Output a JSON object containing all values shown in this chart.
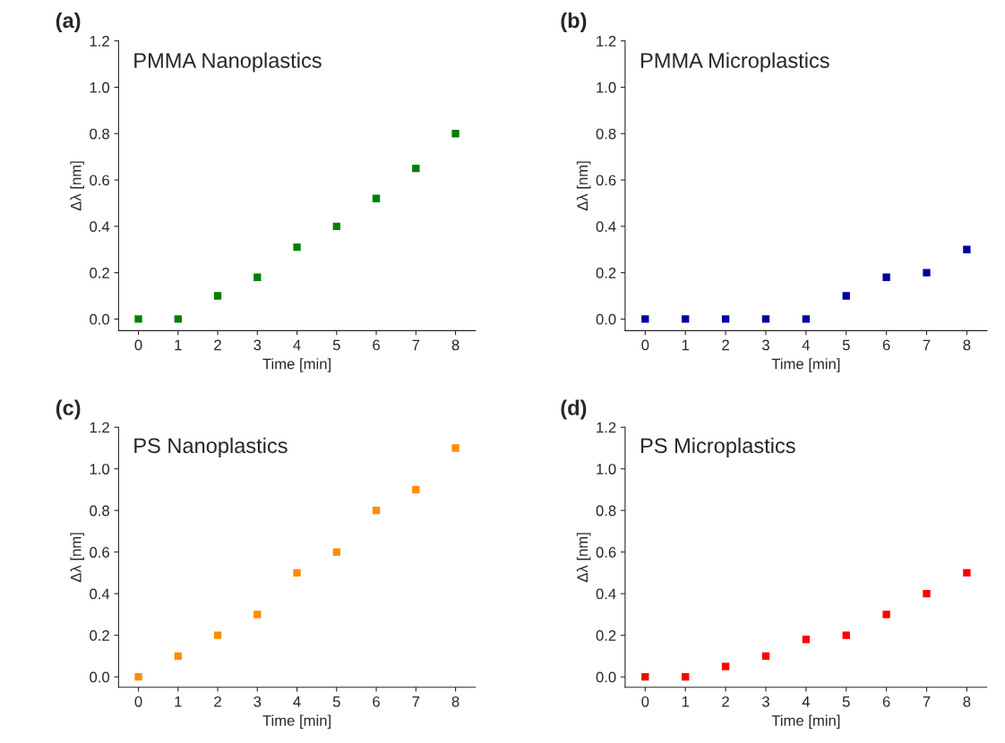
{
  "chart_data": [
    {
      "type": "scatter",
      "title": "PMMA Nanoplastics",
      "xlabel": "Time [min]",
      "ylabel": "Δλ [nm]",
      "annotations": [
        "(a)"
      ],
      "x": [
        0,
        1,
        2,
        3,
        4,
        5,
        6,
        7,
        8
      ],
      "marker": "square",
      "grid": false,
      "series": [
        {
          "color": "#008000",
          "values": [
            0,
            0,
            0.1,
            0.18,
            0.31,
            0.4,
            0.52,
            0.65,
            0.8
          ]
        }
      ],
      "xlim": [
        -0.5,
        8.5
      ],
      "xticks": [
        0,
        1,
        2,
        3,
        4,
        5,
        6,
        7,
        8
      ],
      "ylim": [
        -0.05,
        1.2
      ],
      "yticks": [
        {
          "value": 0,
          "label": "0.0"
        },
        {
          "value": 0.2,
          "label": "0.2"
        },
        {
          "value": 0.4,
          "label": "0.4"
        },
        {
          "value": 0.6,
          "label": "0.6"
        },
        {
          "value": 0.8,
          "label": "0.8"
        },
        {
          "value": 1.0,
          "label": "1.0"
        },
        {
          "value": 1.2,
          "label": "1.2"
        }
      ]
    },
    {
      "type": "scatter",
      "title": "PMMA Microplastics",
      "xlabel": "Time [min]",
      "ylabel": "Δλ [nm]",
      "annotations": [
        "(b)"
      ],
      "x": [
        0,
        1,
        2,
        3,
        4,
        5,
        6,
        7,
        8
      ],
      "marker": "square",
      "grid": false,
      "series": [
        {
          "color": "#0000a0",
          "values": [
            0,
            0,
            0,
            0,
            0,
            0.1,
            0.18,
            0.2,
            0.3
          ]
        }
      ],
      "xlim": [
        -0.5,
        8.5
      ],
      "xticks": [
        0,
        1,
        2,
        3,
        4,
        5,
        6,
        7,
        8
      ],
      "ylim": [
        -0.05,
        1.2
      ],
      "yticks": [
        {
          "value": 0,
          "label": "0.0"
        },
        {
          "value": 0.2,
          "label": "0.2"
        },
        {
          "value": 0.4,
          "label": "0.4"
        },
        {
          "value": 0.6,
          "label": "0.6"
        },
        {
          "value": 0.8,
          "label": "0.8"
        },
        {
          "value": 1.0,
          "label": "1.0"
        },
        {
          "value": 1.2,
          "label": "1.2"
        }
      ]
    },
    {
      "type": "scatter",
      "title": "PS Nanoplastics",
      "xlabel": "Time [min]",
      "ylabel": "Δλ [nm]",
      "annotations": [
        "(c)"
      ],
      "x": [
        0,
        1,
        2,
        3,
        4,
        5,
        6,
        7,
        8
      ],
      "marker": "square",
      "grid": false,
      "series": [
        {
          "color": "#ff8c00",
          "values": [
            0,
            0.1,
            0.2,
            0.3,
            0.5,
            0.6,
            0.8,
            0.9,
            1.1
          ]
        }
      ],
      "xlim": [
        -0.5,
        8.5
      ],
      "xticks": [
        0,
        1,
        2,
        3,
        4,
        5,
        6,
        7,
        8
      ],
      "ylim": [
        -0.05,
        1.2
      ],
      "yticks": [
        {
          "value": 0,
          "label": "0.0"
        },
        {
          "value": 0.2,
          "label": "0.2"
        },
        {
          "value": 0.4,
          "label": "0.4"
        },
        {
          "value": 0.6,
          "label": "0.6"
        },
        {
          "value": 0.8,
          "label": "0.8"
        },
        {
          "value": 1.0,
          "label": "1.0"
        },
        {
          "value": 1.2,
          "label": "1.2"
        }
      ]
    },
    {
      "type": "scatter",
      "title": "PS Microplastics",
      "xlabel": "Time [min]",
      "ylabel": "Δλ [nm]",
      "annotations": [
        "(d)"
      ],
      "x": [
        0,
        1,
        2,
        3,
        4,
        5,
        6,
        7,
        8
      ],
      "marker": "square",
      "grid": false,
      "series": [
        {
          "color": "#ff0000",
          "values": [
            0,
            0,
            0.05,
            0.1,
            0.18,
            0.2,
            0.3,
            0.4,
            0.5
          ]
        }
      ],
      "xlim": [
        -0.5,
        8.5
      ],
      "xticks": [
        0,
        1,
        2,
        3,
        4,
        5,
        6,
        7,
        8
      ],
      "ylim": [
        -0.05,
        1.2
      ],
      "yticks": [
        {
          "value": 0,
          "label": "0.0"
        },
        {
          "value": 0.2,
          "label": "0.2"
        },
        {
          "value": 0.4,
          "label": "0.4"
        },
        {
          "value": 0.6,
          "label": "0.6"
        },
        {
          "value": 0.8,
          "label": "0.8"
        },
        {
          "value": 1.0,
          "label": "1.0"
        },
        {
          "value": 1.2,
          "label": "1.2"
        }
      ]
    }
  ]
}
